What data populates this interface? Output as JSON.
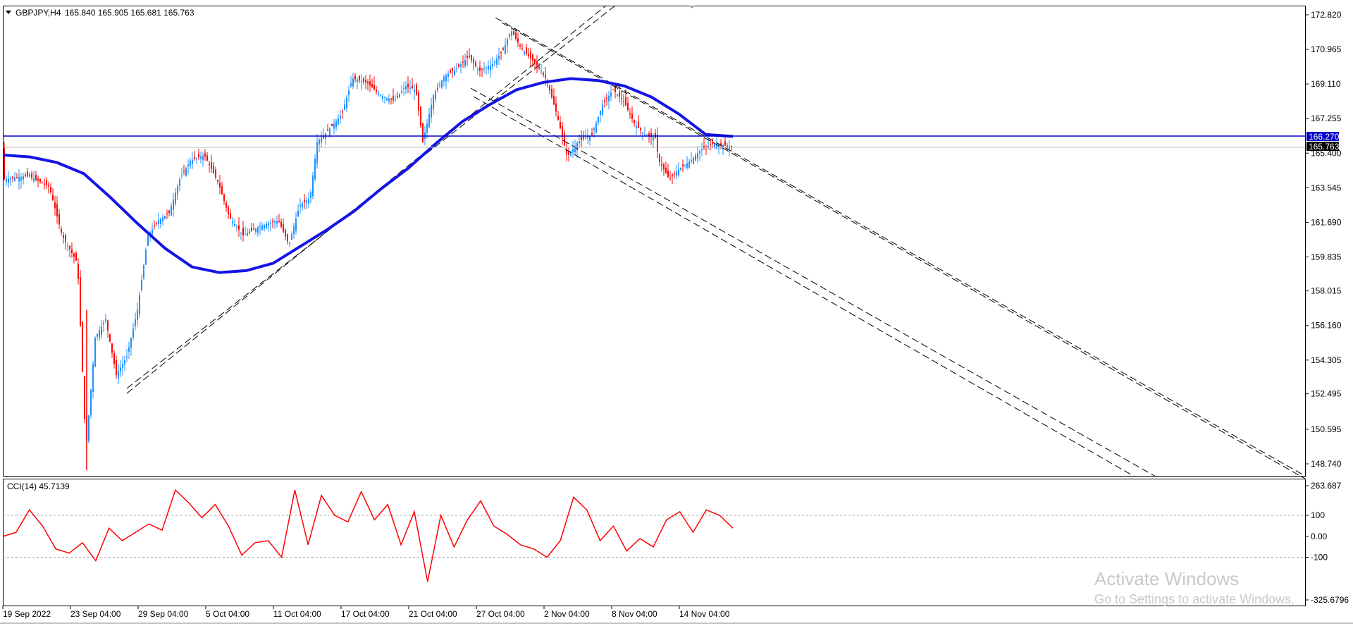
{
  "header": {
    "symbol": "GBPJPY,H4",
    "ohlc": "165.840 165.905 165.681 165.763"
  },
  "indicator": {
    "label": "CCI(14) 45.7139",
    "axis_labels": [
      "263.687",
      "100",
      "0.00",
      "-100",
      "-325.6796"
    ],
    "levels": [
      263.687,
      100,
      0,
      -100,
      -325.6796
    ],
    "color": "#ff0000"
  },
  "price_axis": {
    "labels": [
      "172.820",
      "170.965",
      "169.110",
      "167.255",
      "165.400",
      "163.545",
      "161.690",
      "159.835",
      "158.015",
      "156.160",
      "154.305",
      "152.495",
      "150.595",
      "148.740"
    ],
    "values": [
      172.82,
      170.965,
      169.11,
      167.255,
      165.4,
      163.545,
      161.69,
      159.835,
      158.015,
      156.16,
      154.305,
      152.495,
      150.595,
      148.74
    ]
  },
  "price_badges": {
    "hline": {
      "text": "166.270",
      "value": 166.27,
      "bg": "#0000c8"
    },
    "bid": {
      "text": "165.763",
      "value": 165.763,
      "bg": "#000000"
    }
  },
  "time_axis": {
    "labels": [
      "19 Sep 2022",
      "23 Sep 04:00",
      "29 Sep 04:00",
      "5 Oct 04:00",
      "11 Oct 04:00",
      "17 Oct 04:00",
      "21 Oct 04:00",
      "27 Oct 04:00",
      "2 Nov 04:00",
      "8 Nov 04:00",
      "14 Nov 04:00"
    ]
  },
  "colors": {
    "bull": "#1e90ff",
    "bear": "#ff0000",
    "ma": "#1414e6",
    "hline": "#0000c8",
    "grid": "#000000"
  },
  "watermark": {
    "line1": "Activate Windows",
    "line2": "Go to Settings to activate Windows."
  },
  "chart_data": {
    "type": "line",
    "symbol": "GBPJPY",
    "timeframe": "H4",
    "ylim": [
      148.0,
      173.4
    ],
    "ma_values": [
      165.3,
      165.2,
      164.9,
      164.3,
      163.0,
      161.6,
      160.3,
      159.3,
      159.0,
      159.1,
      159.5,
      160.4,
      161.3,
      162.3,
      163.5,
      164.6,
      165.9,
      167.1,
      168.0,
      168.8,
      169.2,
      169.4,
      169.3,
      169.0,
      168.4,
      167.5,
      166.4,
      166.3
    ],
    "cci_values": [
      0,
      20,
      130,
      50,
      -60,
      -80,
      -30,
      -120,
      40,
      -20,
      20,
      60,
      30,
      240,
      170,
      90,
      160,
      50,
      -90,
      -30,
      -20,
      -100,
      240,
      -40,
      210,
      100,
      70,
      230,
      80,
      160,
      -40,
      120,
      -230,
      100,
      -50,
      80,
      180,
      50,
      10,
      -40,
      -60,
      -100,
      -20,
      200,
      130,
      -20,
      50,
      -70,
      -10,
      -50,
      80,
      120,
      20,
      130,
      100,
      40
    ],
    "annotations": [
      "rising dashed channel",
      "falling dashed channel",
      "horizontal line 166.270"
    ]
  }
}
